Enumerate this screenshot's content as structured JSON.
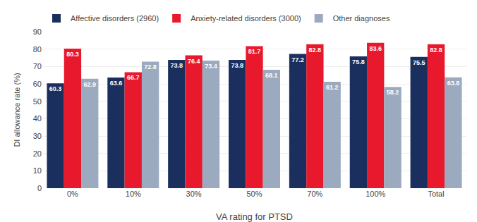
{
  "chart_data": {
    "type": "bar",
    "xlabel": "VA rating for PTSD",
    "ylabel": "DI allowance rate (%)",
    "categories": [
      "0%",
      "10%",
      "30%",
      "50%",
      "70%",
      "100%",
      "Total"
    ],
    "series": [
      {
        "name": "Affective disorders (2960)",
        "color": "#1b2f5e",
        "values": [
          60.3,
          63.6,
          73.8,
          73.8,
          77.2,
          75.8,
          75.5
        ]
      },
      {
        "name": "Anxiety-related disorders (3000)",
        "color": "#e8192c",
        "values": [
          80.3,
          66.7,
          76.4,
          81.7,
          82.8,
          83.6,
          82.8
        ]
      },
      {
        "name": "Other diagnoses",
        "color": "#9baabf",
        "values": [
          62.9,
          72.8,
          73.4,
          68.1,
          61.2,
          58.2,
          63.8
        ]
      }
    ],
    "ylim": [
      0,
      90
    ],
    "yticks": [
      0,
      10,
      20,
      30,
      40,
      50,
      60,
      70,
      80,
      90
    ],
    "grid": true,
    "legend": "upper left",
    "data_labels": true
  }
}
